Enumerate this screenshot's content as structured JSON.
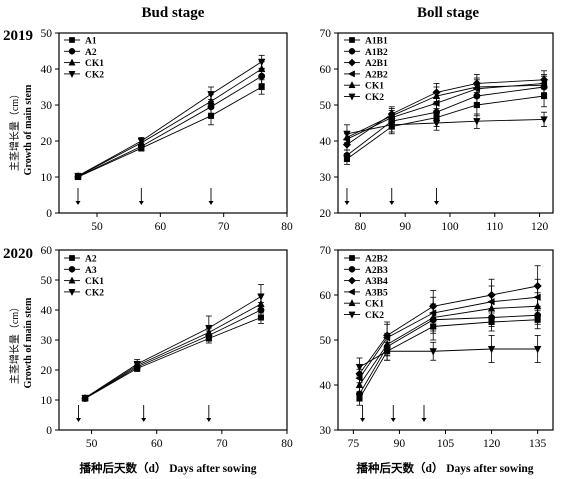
{
  "header": {
    "col_left_title": "Bud stage",
    "col_right_title": "Boll stage",
    "row1_year": "2019",
    "row2_year": "2020"
  },
  "common": {
    "ylabel_cn": "主茎增长量（cm）",
    "ylabel_en": "Growth of main stem",
    "xlabel": "播种后天数（d） Days after sowing"
  },
  "chart_data": [
    {
      "id": "bud-2019",
      "type": "line",
      "title": "Bud stage",
      "year": "2019",
      "xlim": [
        44,
        80
      ],
      "ylim": [
        0,
        50
      ],
      "xticks": [
        50,
        60,
        70,
        80
      ],
      "yticks": [
        0,
        10,
        20,
        30,
        40,
        50
      ],
      "x": [
        47,
        57,
        68,
        76
      ],
      "arrows": [
        47,
        57,
        68
      ],
      "series": [
        {
          "name": "A1",
          "marker": "square",
          "values": [
            10.0,
            18.0,
            27.0,
            35.0
          ],
          "err": [
            0.6,
            0.8,
            2.5,
            2.0
          ]
        },
        {
          "name": "A2",
          "marker": "circle",
          "values": [
            10.1,
            18.5,
            29.5,
            38.0
          ],
          "err": [
            0.6,
            1.0,
            2.0,
            2.0
          ]
        },
        {
          "name": "CK1",
          "marker": "triangle-up",
          "values": [
            10.2,
            19.5,
            31.0,
            40.0
          ],
          "err": [
            0.6,
            1.0,
            2.0,
            2.0
          ]
        },
        {
          "name": "CK2",
          "marker": "triangle-down",
          "values": [
            10.3,
            20.0,
            33.0,
            42.0
          ],
          "err": [
            0.6,
            1.0,
            2.0,
            1.8
          ]
        }
      ]
    },
    {
      "id": "boll-2019",
      "type": "line",
      "title": "Boll stage",
      "year": "2019",
      "xlim": [
        75,
        123
      ],
      "ylim": [
        20,
        70
      ],
      "xticks": [
        80,
        90,
        100,
        110,
        120
      ],
      "yticks": [
        20,
        30,
        40,
        50,
        60,
        70
      ],
      "x": [
        77,
        87,
        97,
        106,
        121
      ],
      "arrows": [
        77,
        87,
        97
      ],
      "series": [
        {
          "name": "A1B1",
          "marker": "square",
          "values": [
            35.0,
            44.0,
            46.5,
            50.0,
            52.5
          ],
          "err": [
            1.5,
            2.0,
            2.5,
            3.0,
            3.0
          ]
        },
        {
          "name": "A1B2",
          "marker": "circle",
          "values": [
            36.0,
            45.5,
            48.0,
            52.5,
            55.0
          ],
          "err": [
            1.5,
            2.0,
            2.5,
            3.0,
            3.0
          ]
        },
        {
          "name": "A2B1",
          "marker": "diamond",
          "values": [
            39.0,
            47.5,
            53.5,
            56.0,
            57.0
          ],
          "err": [
            1.5,
            2.0,
            2.5,
            2.5,
            2.5
          ]
        },
        {
          "name": "A2B2",
          "marker": "triangle-left",
          "values": [
            40.5,
            46.5,
            50.5,
            54.5,
            56.0
          ],
          "err": [
            1.5,
            2.0,
            3.0,
            2.5,
            2.5
          ]
        },
        {
          "name": "CK1",
          "marker": "triangle-up",
          "values": [
            41.0,
            47.0,
            52.5,
            55.0,
            55.5
          ],
          "err": [
            1.5,
            2.0,
            2.5,
            2.5,
            2.5
          ]
        },
        {
          "name": "CK2",
          "marker": "triangle-down",
          "values": [
            42.0,
            44.5,
            45.0,
            45.5,
            46.0
          ],
          "err": [
            2.5,
            2.0,
            2.0,
            2.0,
            2.0
          ]
        }
      ]
    },
    {
      "id": "bud-2020",
      "type": "line",
      "title": "",
      "year": "2020",
      "xlim": [
        45,
        80
      ],
      "ylim": [
        0,
        60
      ],
      "xticks": [
        50,
        60,
        70,
        80
      ],
      "yticks": [
        0,
        10,
        20,
        30,
        40,
        50,
        60
      ],
      "x": [
        49,
        57,
        68,
        76
      ],
      "arrows": [
        48,
        58,
        68
      ],
      "series": [
        {
          "name": "A2",
          "marker": "square",
          "values": [
            10.5,
            20.5,
            30.5,
            37.5
          ],
          "err": [
            0.8,
            1.0,
            1.5,
            2.0
          ]
        },
        {
          "name": "A3",
          "marker": "circle",
          "values": [
            10.5,
            21.0,
            31.5,
            40.0
          ],
          "err": [
            0.8,
            1.0,
            1.5,
            2.5
          ]
        },
        {
          "name": "CK1",
          "marker": "triangle-up",
          "values": [
            10.6,
            21.5,
            32.5,
            42.0
          ],
          "err": [
            0.8,
            1.0,
            1.5,
            3.0
          ]
        },
        {
          "name": "CK2",
          "marker": "triangle-down",
          "values": [
            10.7,
            22.0,
            34.0,
            44.5
          ],
          "err": [
            0.8,
            1.5,
            4.0,
            4.0
          ]
        }
      ]
    },
    {
      "id": "boll-2020",
      "type": "line",
      "title": "",
      "year": "2020",
      "xlim": [
        70,
        140
      ],
      "ylim": [
        30,
        70
      ],
      "xticks": [
        75,
        90,
        105,
        120,
        135
      ],
      "yticks": [
        30,
        40,
        50,
        60,
        70
      ],
      "xticklabels": [
        "75",
        "90",
        "105",
        "120",
        "135"
      ],
      "x": [
        77,
        86,
        101,
        120,
        135
      ],
      "arrows": [
        78,
        88,
        98
      ],
      "series": [
        {
          "name": "A2B2",
          "marker": "square",
          "values": [
            37.0,
            47.5,
            53.0,
            54.0,
            54.5
          ],
          "err": [
            1.5,
            2.0,
            3.0,
            2.0,
            2.0
          ]
        },
        {
          "name": "A2B3",
          "marker": "circle",
          "values": [
            38.0,
            48.5,
            54.5,
            55.0,
            55.5
          ],
          "err": [
            1.5,
            2.0,
            3.0,
            2.0,
            2.0
          ]
        },
        {
          "name": "A3B4",
          "marker": "diamond",
          "values": [
            42.5,
            51.0,
            57.5,
            60.0,
            62.0
          ],
          "err": [
            2.0,
            3.0,
            3.5,
            3.5,
            4.5
          ]
        },
        {
          "name": "A3B5",
          "marker": "triangle-left",
          "values": [
            41.5,
            50.5,
            56.0,
            58.5,
            59.5
          ],
          "err": [
            2.0,
            3.0,
            3.5,
            3.5,
            4.0
          ]
        },
        {
          "name": "CK1",
          "marker": "triangle-up",
          "values": [
            40.0,
            49.0,
            55.0,
            57.0,
            57.5
          ],
          "err": [
            2.0,
            2.5,
            3.0,
            3.0,
            3.0
          ]
        },
        {
          "name": "CK2",
          "marker": "triangle-down",
          "values": [
            44.0,
            47.5,
            47.5,
            48.0,
            48.0
          ],
          "err": [
            2.0,
            2.0,
            2.0,
            3.0,
            3.0
          ]
        }
      ]
    }
  ]
}
